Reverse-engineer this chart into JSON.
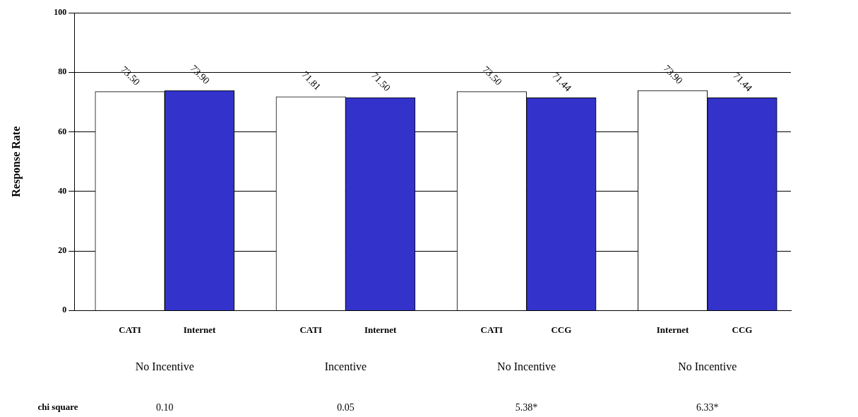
{
  "chart_data": {
    "type": "bar",
    "ylabel": "Response Rate",
    "categories": [
      "CATI",
      "Internet",
      "CATI",
      "Internet",
      "CATI",
      "CCG",
      "Internet",
      "CCG"
    ],
    "values": [
      73.5,
      73.9,
      71.81,
      71.5,
      73.5,
      71.44,
      73.9,
      71.44
    ],
    "value_labels": [
      "73.50",
      "73.90",
      "71.81",
      "71.50",
      "73.50",
      "71.44",
      "73.90",
      "71.44"
    ],
    "colors": [
      "#ffffff",
      "#3333cc",
      "#ffffff",
      "#3333cc",
      "#ffffff",
      "#3333cc",
      "#ffffff",
      "#3333cc"
    ],
    "ylim": [
      0,
      100
    ],
    "yticks": [
      0,
      20,
      40,
      60,
      80,
      100
    ],
    "grid": "y",
    "legend": false,
    "annotations": [
      "No Incentive",
      "Incentive",
      "No Incentive",
      "No Incentive",
      "chi square",
      "0.10",
      "0.05",
      "5.38*",
      "6.33*"
    ]
  }
}
